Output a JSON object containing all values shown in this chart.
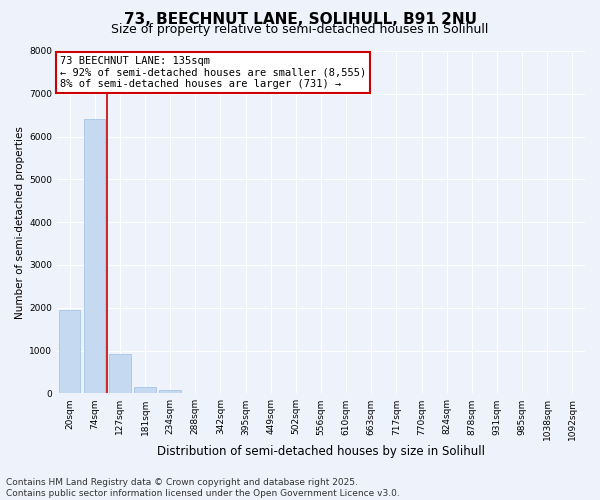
{
  "title": "73, BEECHNUT LANE, SOLIHULL, B91 2NU",
  "subtitle": "Size of property relative to semi-detached houses in Solihull",
  "xlabel": "Distribution of semi-detached houses by size in Solihull",
  "ylabel": "Number of semi-detached properties",
  "categories": [
    "20sqm",
    "74sqm",
    "127sqm",
    "181sqm",
    "234sqm",
    "288sqm",
    "342sqm",
    "395sqm",
    "449sqm",
    "502sqm",
    "556sqm",
    "610sqm",
    "663sqm",
    "717sqm",
    "770sqm",
    "824sqm",
    "878sqm",
    "931sqm",
    "985sqm",
    "1038sqm",
    "1092sqm"
  ],
  "values": [
    1950,
    6420,
    920,
    155,
    80,
    10,
    5,
    3,
    2,
    1,
    1,
    0,
    0,
    0,
    0,
    0,
    0,
    0,
    0,
    0,
    0
  ],
  "bar_color": "#c5d9f0",
  "bar_edge_color": "#9dbfe0",
  "vline_x_index": 2,
  "vline_color": "#cc0000",
  "annotation_title": "73 BEECHNUT LANE: 135sqm",
  "annotation_line2": "← 92% of semi-detached houses are smaller (8,555)",
  "annotation_line3": "8% of semi-detached houses are larger (731) →",
  "annotation_box_color": "#cc0000",
  "ylim": [
    0,
    8000
  ],
  "yticks": [
    0,
    1000,
    2000,
    3000,
    4000,
    5000,
    6000,
    7000,
    8000
  ],
  "background_color": "#eef2fa",
  "plot_bg_color": "#eef2fa",
  "grid_color": "#ffffff",
  "footer_line1": "Contains HM Land Registry data © Crown copyright and database right 2025.",
  "footer_line2": "Contains public sector information licensed under the Open Government Licence v3.0.",
  "title_fontsize": 11,
  "subtitle_fontsize": 9,
  "xlabel_fontsize": 8.5,
  "ylabel_fontsize": 7.5,
  "tick_fontsize": 6.5,
  "footer_fontsize": 6.5,
  "annot_fontsize": 7.5
}
